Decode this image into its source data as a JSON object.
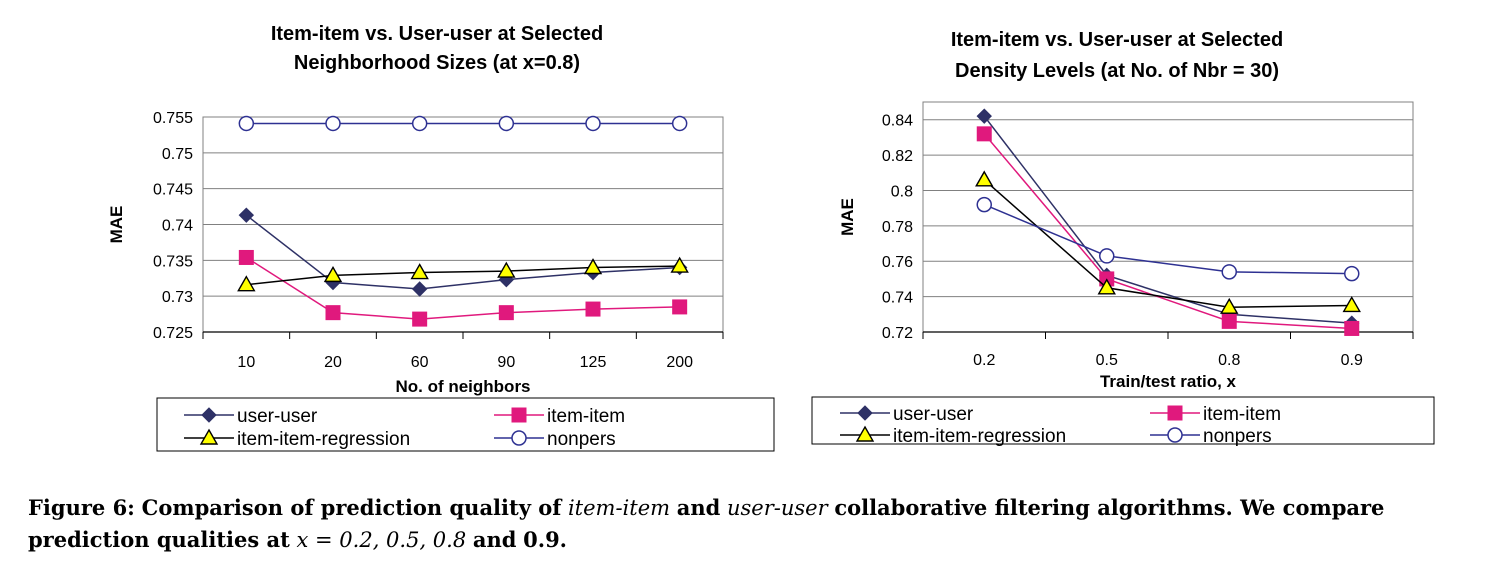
{
  "caption": {
    "label": "Figure 6:",
    "part1": "Comparison of prediction quality of",
    "em1": "item-item",
    "part2": "and",
    "em2": "user-user",
    "part3": "collaborative filtering algorithms. We compare prediction qualities at",
    "math": "x = 0.2, 0.5, 0.8",
    "part4": "and",
    "math2": "0.9."
  },
  "chart_data": [
    {
      "type": "line",
      "title_lines": [
        "Item-item vs. User-user at Selected",
        "Neighborhood Sizes (at x=0.8)"
      ],
      "xlabel": "No. of neighbors",
      "ylabel": "MAE",
      "categories": [
        "10",
        "20",
        "60",
        "90",
        "125",
        "200"
      ],
      "ylim": [
        0.725,
        0.755
      ],
      "yticks": [
        0.725,
        0.73,
        0.735,
        0.74,
        0.745,
        0.75,
        0.755
      ],
      "ytick_labels": [
        "0.725",
        "0.73",
        "0.735",
        "0.74",
        "0.745",
        "0.75",
        "0.755"
      ],
      "grid": true,
      "legend_position": "bottom",
      "series": [
        {
          "name": "user-user",
          "marker": "diamond",
          "color": "#2e3166",
          "values": [
            0.7413,
            0.7319,
            0.731,
            0.7323,
            0.7333,
            0.734
          ]
        },
        {
          "name": "item-item",
          "marker": "square",
          "color": "#e0197d",
          "values": [
            0.7354,
            0.7277,
            0.7268,
            0.7277,
            0.7282,
            0.7285
          ]
        },
        {
          "name": "item-item-regression",
          "marker": "triangle",
          "color": "#000000",
          "values": [
            0.7316,
            0.7329,
            0.7333,
            0.7335,
            0.734,
            0.7342
          ]
        },
        {
          "name": "nonpers",
          "marker": "circle",
          "color": "#2e3192",
          "values": [
            0.7541,
            0.7541,
            0.7541,
            0.7541,
            0.7541,
            0.7541
          ]
        }
      ]
    },
    {
      "type": "line",
      "title_lines": [
        "Item-item vs. User-user at Selected",
        "Density Levels (at No. of Nbr = 30)"
      ],
      "xlabel": "Train/test ratio, x",
      "ylabel": "MAE",
      "categories": [
        "0.2",
        "0.5",
        "0.8",
        "0.9"
      ],
      "ylim": [
        0.72,
        0.85
      ],
      "yticks": [
        0.72,
        0.74,
        0.76,
        0.78,
        0.8,
        0.82,
        0.84
      ],
      "ytick_labels": [
        "0.72",
        "0.74",
        "0.76",
        "0.78",
        "0.8",
        "0.82",
        "0.84"
      ],
      "grid": true,
      "legend_position": "bottom",
      "series": [
        {
          "name": "user-user",
          "marker": "diamond",
          "color": "#2e3166",
          "values": [
            0.842,
            0.752,
            0.73,
            0.725
          ]
        },
        {
          "name": "item-item",
          "marker": "square",
          "color": "#e0197d",
          "values": [
            0.832,
            0.75,
            0.726,
            0.722
          ]
        },
        {
          "name": "item-item-regression",
          "marker": "triangle",
          "color": "#000000",
          "values": [
            0.806,
            0.745,
            0.734,
            0.735
          ]
        },
        {
          "name": "nonpers",
          "marker": "circle",
          "color": "#2e3192",
          "values": [
            0.792,
            0.763,
            0.754,
            0.753
          ]
        }
      ]
    }
  ],
  "styles": {
    "nonpers_fill": "#ffffff",
    "triangle_fill": "#ffff00",
    "grid_color": "#808080",
    "frame_color": "#808080"
  }
}
